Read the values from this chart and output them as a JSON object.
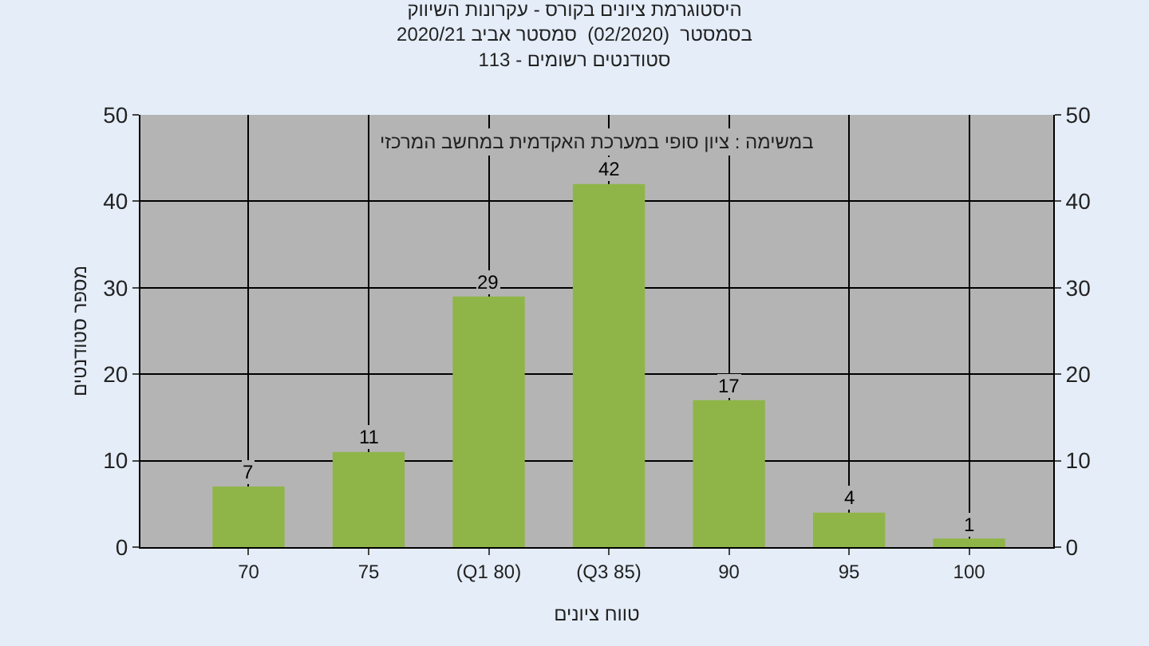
{
  "chart_data": {
    "type": "bar",
    "title": "היסטוגרמת ציונים בקורס - עקרונות השיווק\nבסמסטר  (02/2020)  סמסטר אביב 2020/21\nסטודנטים רשומים - 113",
    "xlabel": "טווח ציונים",
    "ylabel": "מספר סטודנטים",
    "annotations": [
      "במשימה : ציון סופי במערכת האקדמית במחשב המרכזי"
    ],
    "categories": [
      "70",
      "75",
      "(Q1 80)",
      "(Q3 85)",
      "90",
      "95",
      "100"
    ],
    "series": [
      {
        "color": "#8fb548",
        "values": [
          7,
          11,
          29,
          42,
          17,
          4,
          1
        ]
      }
    ],
    "data_labels": true,
    "ylim": [
      0,
      50
    ],
    "yticks": [
      0,
      10,
      20,
      30,
      40,
      50
    ],
    "y2lim": [
      0,
      50
    ],
    "y2ticks": [
      0,
      10,
      20,
      30,
      40,
      50
    ],
    "grid": true
  }
}
